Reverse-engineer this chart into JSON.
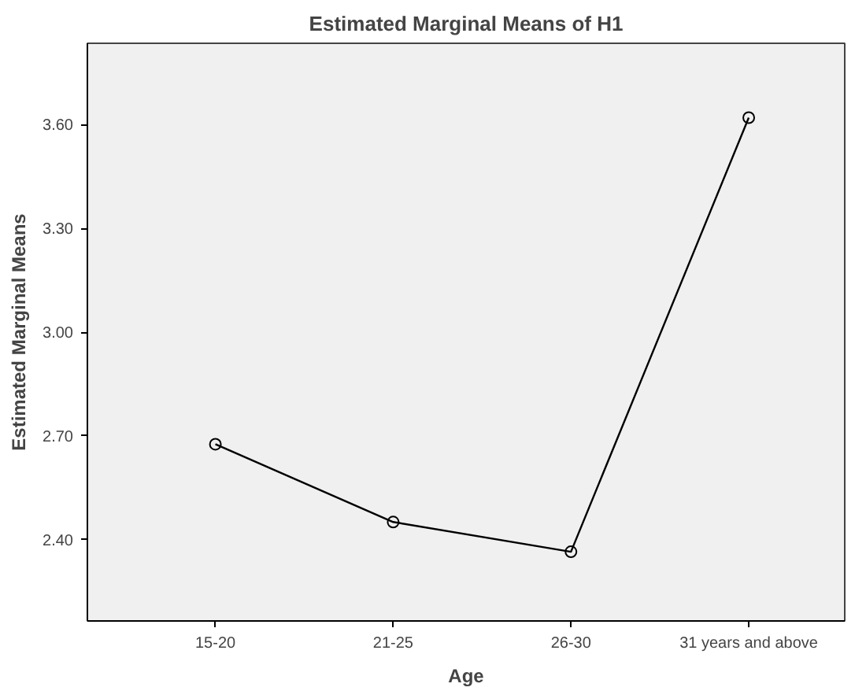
{
  "chart_data": {
    "type": "line",
    "title": "Estimated Marginal Means of H1",
    "xlabel": "Age",
    "ylabel": "Estimated Marginal Means",
    "categories": [
      "15-20",
      "21-25",
      "26-30",
      "31 years and above"
    ],
    "series": [
      {
        "color": "#000000",
        "values": [
          2.676,
          2.451,
          2.365,
          3.62
        ]
      }
    ],
    "ylim": [
      2.165,
      3.835
    ],
    "yticks": [
      {
        "value": 2.4,
        "label": "2.40"
      },
      {
        "value": 2.7,
        "label": "2.70"
      },
      {
        "value": 3.0,
        "label": "3.00"
      },
      {
        "value": 3.3,
        "label": "3.30"
      },
      {
        "value": 3.6,
        "label": "3.60"
      }
    ],
    "marker": "circle",
    "grid": false
  }
}
